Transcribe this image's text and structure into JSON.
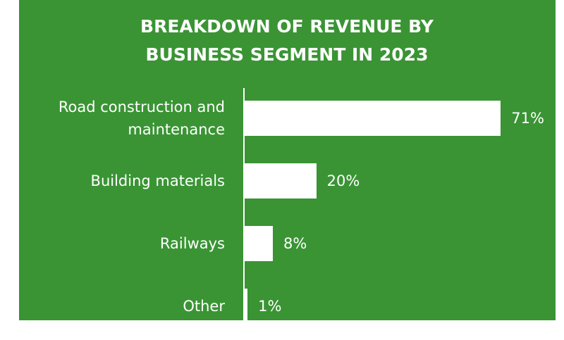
{
  "chart_data": {
    "type": "bar",
    "orientation": "horizontal",
    "title": "BREAKDOWN OF REVENUE BY BUSINESS SEGMENT IN 2023",
    "categories": [
      "Road construction and maintenance",
      "Building materials",
      "Railways",
      "Other"
    ],
    "values": [
      71,
      20,
      8,
      1
    ],
    "value_labels": [
      "71%",
      "20%",
      "8%",
      "1%"
    ],
    "color": "#ffffff",
    "background": "#3a9434"
  }
}
